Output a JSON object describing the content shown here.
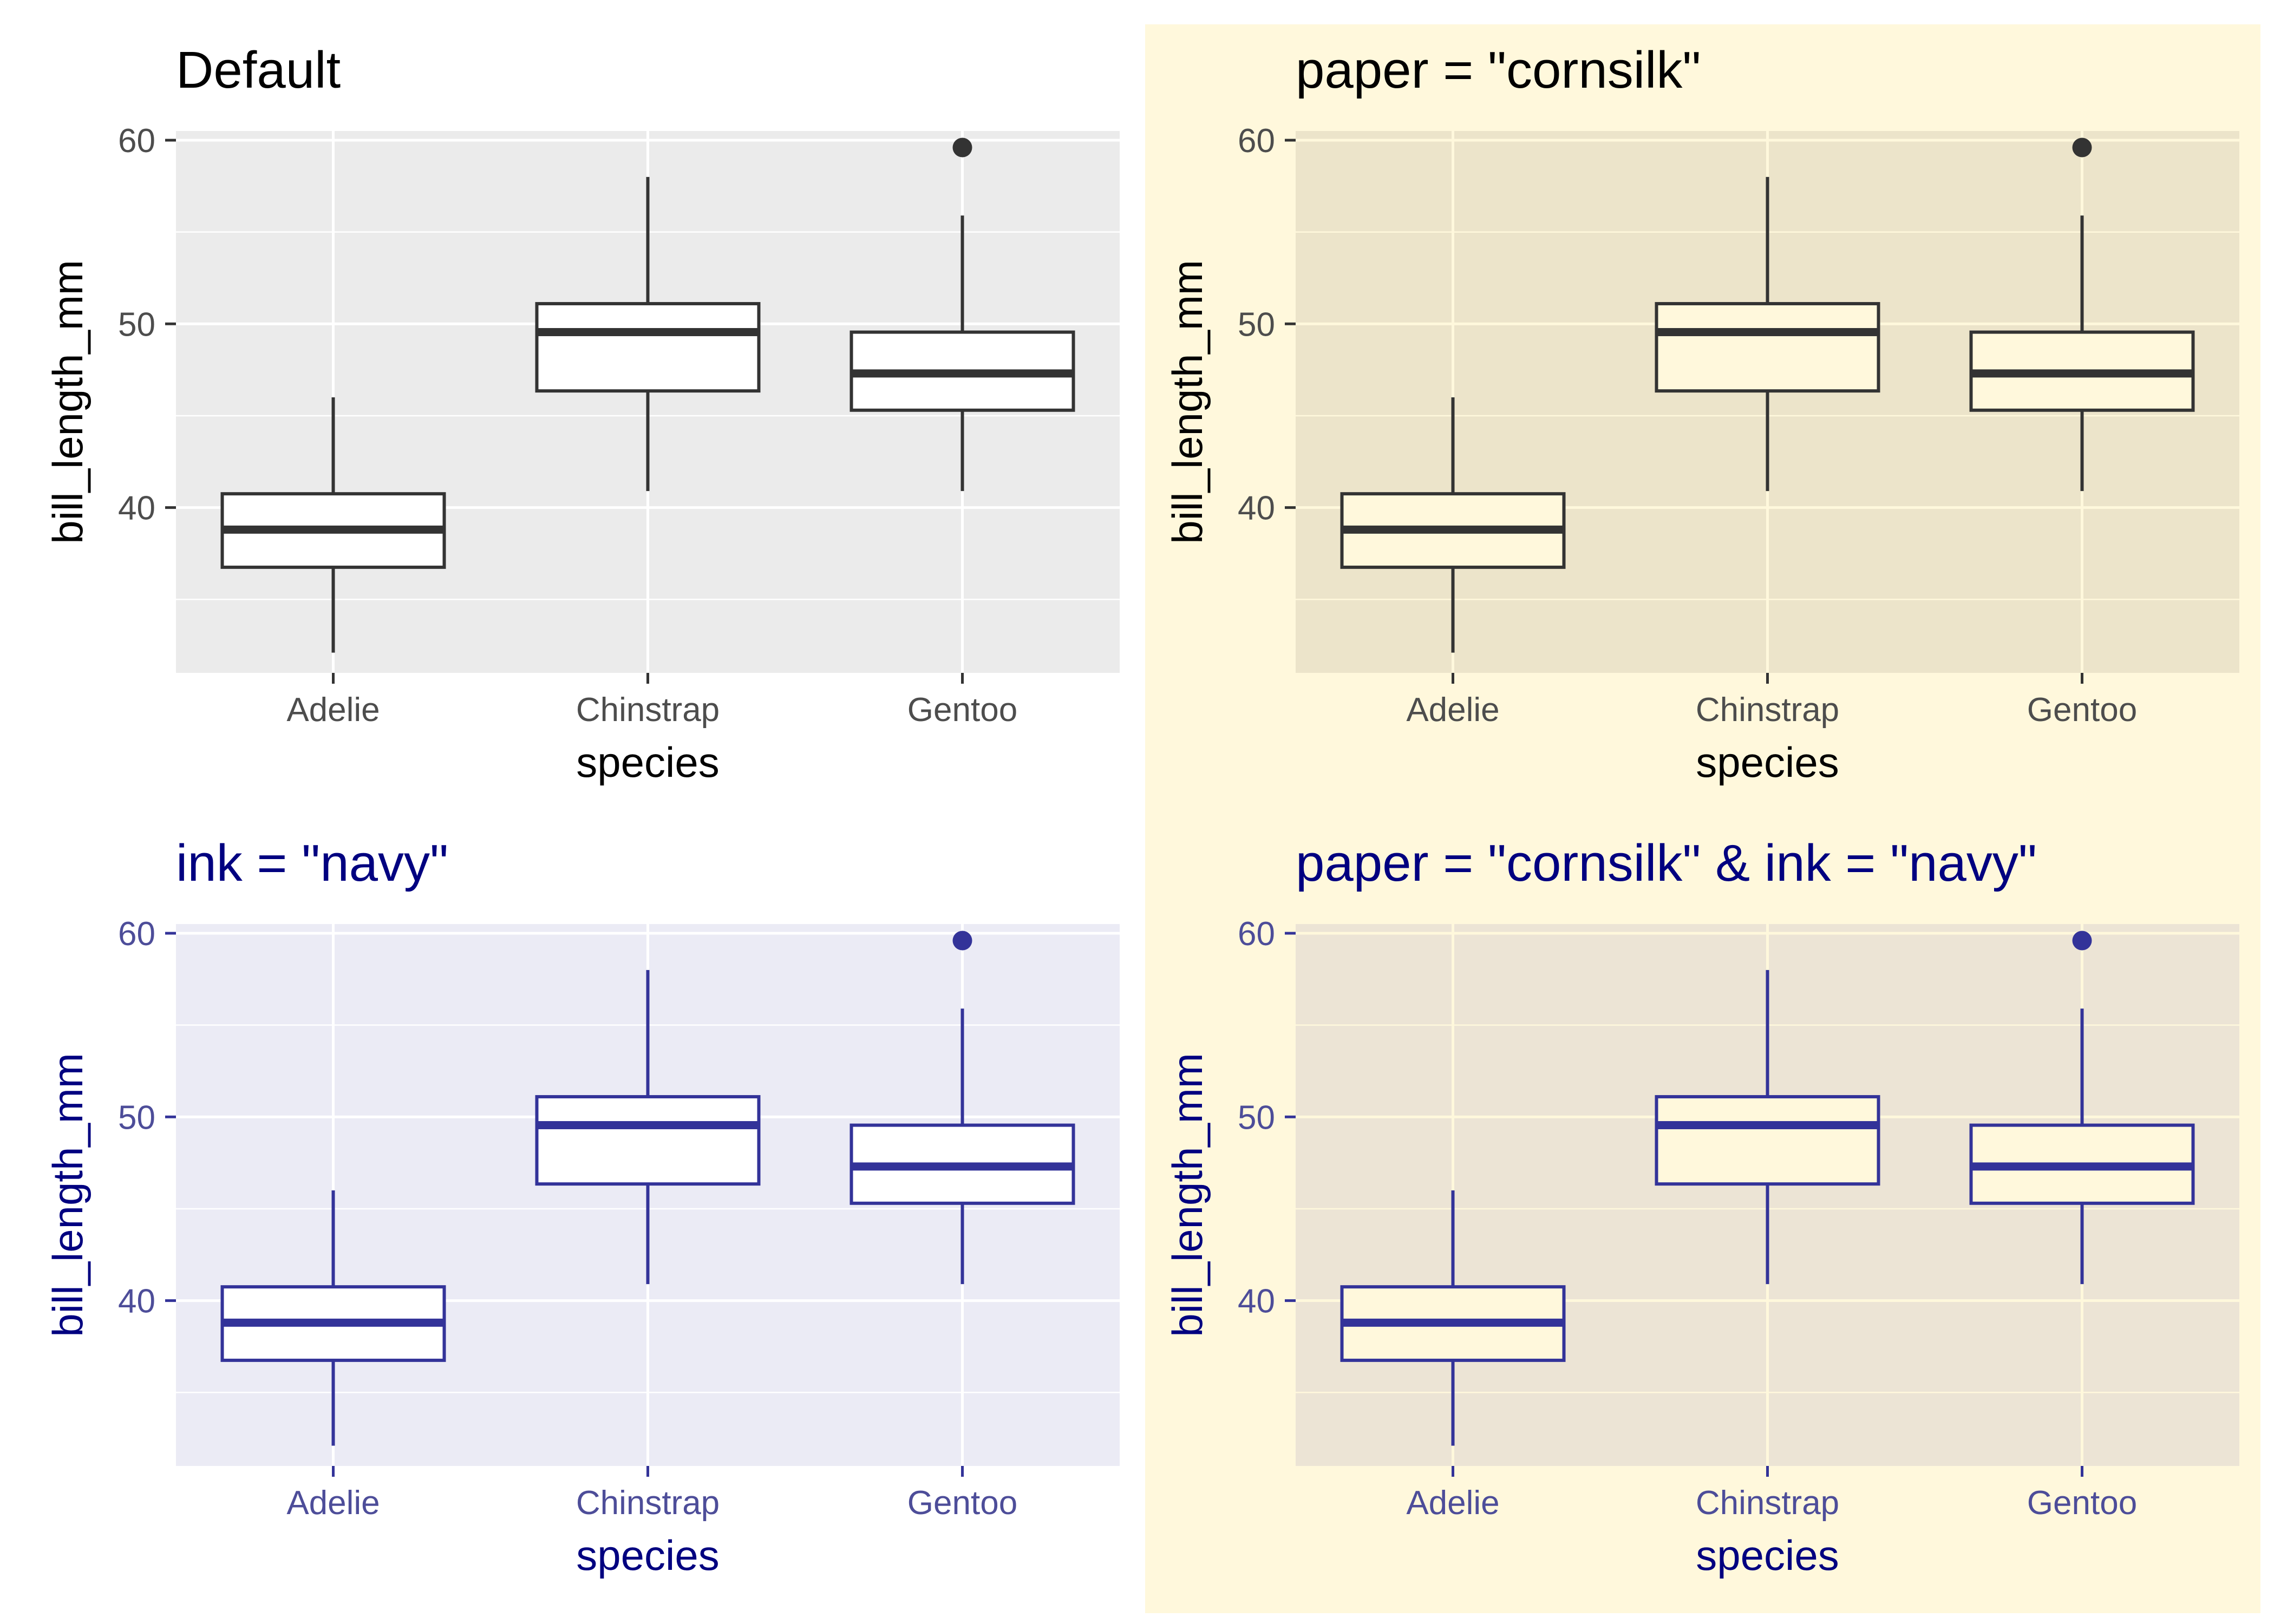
{
  "figure": {
    "background": "#ffffff",
    "paper_region": {
      "color": "#fff8dc",
      "label": "cornsilk"
    }
  },
  "chart_data": [
    {
      "type": "box",
      "title": "Default",
      "xlabel": "species",
      "ylabel": "bill_length_mm",
      "categories": [
        "Adelie",
        "Chinstrap",
        "Gentoo"
      ],
      "ylim": [
        31,
        60.5
      ],
      "yticks": [
        40,
        50,
        60
      ],
      "grid": true,
      "boxes": [
        {
          "category": "Adelie",
          "whisker_low": 32.1,
          "q1": 36.75,
          "median": 38.8,
          "q3": 40.75,
          "whisker_high": 46.0,
          "outliers": []
        },
        {
          "category": "Chinstrap",
          "whisker_low": 40.9,
          "q1": 46.35,
          "median": 49.55,
          "q3": 51.1,
          "whisker_high": 58.0,
          "outliers": []
        },
        {
          "category": "Gentoo",
          "whisker_low": 40.9,
          "q1": 45.3,
          "median": 47.3,
          "q3": 49.55,
          "whisker_high": 55.9,
          "outliers": [
            59.6
          ]
        }
      ],
      "colors": {
        "panel_bg": "#ebebeb",
        "grid": "#ffffff",
        "ink": "#333333",
        "box_fill": "#ffffff",
        "title": "#000000",
        "axis_title": "#000000",
        "tick_label": "#4d4d4d",
        "tick_mark": "#333333"
      }
    },
    {
      "type": "box",
      "title": "paper = \"cornsilk\"",
      "xlabel": "species",
      "ylabel": "bill_length_mm",
      "categories": [
        "Adelie",
        "Chinstrap",
        "Gentoo"
      ],
      "ylim": [
        31,
        60.5
      ],
      "yticks": [
        40,
        50,
        60
      ],
      "grid": true,
      "boxes": [
        {
          "category": "Adelie",
          "whisker_low": 32.1,
          "q1": 36.75,
          "median": 38.8,
          "q3": 40.75,
          "whisker_high": 46.0,
          "outliers": []
        },
        {
          "category": "Chinstrap",
          "whisker_low": 40.9,
          "q1": 46.35,
          "median": 49.55,
          "q3": 51.1,
          "whisker_high": 58.0,
          "outliers": []
        },
        {
          "category": "Gentoo",
          "whisker_low": 40.9,
          "q1": 45.3,
          "median": 47.3,
          "q3": 49.55,
          "whisker_high": 55.9,
          "outliers": [
            59.6
          ]
        }
      ],
      "colors": {
        "panel_bg": "#ece4ca",
        "grid": "#fff8dc",
        "ink": "#333333",
        "box_fill": "#fff8dc",
        "title": "#000000",
        "axis_title": "#000000",
        "tick_label": "#4d4d4d",
        "tick_mark": "#333333"
      }
    },
    {
      "type": "box",
      "title": "ink = \"navy\"",
      "xlabel": "species",
      "ylabel": "bill_length_mm",
      "categories": [
        "Adelie",
        "Chinstrap",
        "Gentoo"
      ],
      "ylim": [
        31,
        60.5
      ],
      "yticks": [
        40,
        50,
        60
      ],
      "grid": true,
      "boxes": [
        {
          "category": "Adelie",
          "whisker_low": 32.1,
          "q1": 36.75,
          "median": 38.8,
          "q3": 40.75,
          "whisker_high": 46.0,
          "outliers": []
        },
        {
          "category": "Chinstrap",
          "whisker_low": 40.9,
          "q1": 46.35,
          "median": 49.55,
          "q3": 51.1,
          "whisker_high": 58.0,
          "outliers": []
        },
        {
          "category": "Gentoo",
          "whisker_low": 40.9,
          "q1": 45.3,
          "median": 47.3,
          "q3": 49.55,
          "whisker_high": 55.9,
          "outliers": [
            59.6
          ]
        }
      ],
      "colors": {
        "panel_bg": "#ebebf5",
        "grid": "#ffffff",
        "ink": "#333399",
        "box_fill": "#ffffff",
        "title": "#000080",
        "axis_title": "#000080",
        "tick_label": "#4d4d99",
        "tick_mark": "#333399"
      }
    },
    {
      "type": "box",
      "title": "paper = \"cornsilk\" & ink = \"navy\"",
      "xlabel": "species",
      "ylabel": "bill_length_mm",
      "categories": [
        "Adelie",
        "Chinstrap",
        "Gentoo"
      ],
      "ylim": [
        31,
        60.5
      ],
      "yticks": [
        40,
        50,
        60
      ],
      "grid": true,
      "boxes": [
        {
          "category": "Adelie",
          "whisker_low": 32.1,
          "q1": 36.75,
          "median": 38.8,
          "q3": 40.75,
          "whisker_high": 46.0,
          "outliers": []
        },
        {
          "category": "Chinstrap",
          "whisker_low": 40.9,
          "q1": 46.35,
          "median": 49.55,
          "q3": 51.1,
          "whisker_high": 58.0,
          "outliers": []
        },
        {
          "category": "Gentoo",
          "whisker_low": 40.9,
          "q1": 45.3,
          "median": 47.3,
          "q3": 49.55,
          "whisker_high": 55.9,
          "outliers": [
            59.6
          ]
        }
      ],
      "colors": {
        "panel_bg": "#ece4d5",
        "grid": "#fff8dc",
        "ink": "#333399",
        "box_fill": "#fff8dc",
        "title": "#000080",
        "axis_title": "#000080",
        "tick_label": "#4d4d99",
        "tick_mark": "#333399"
      }
    }
  ]
}
